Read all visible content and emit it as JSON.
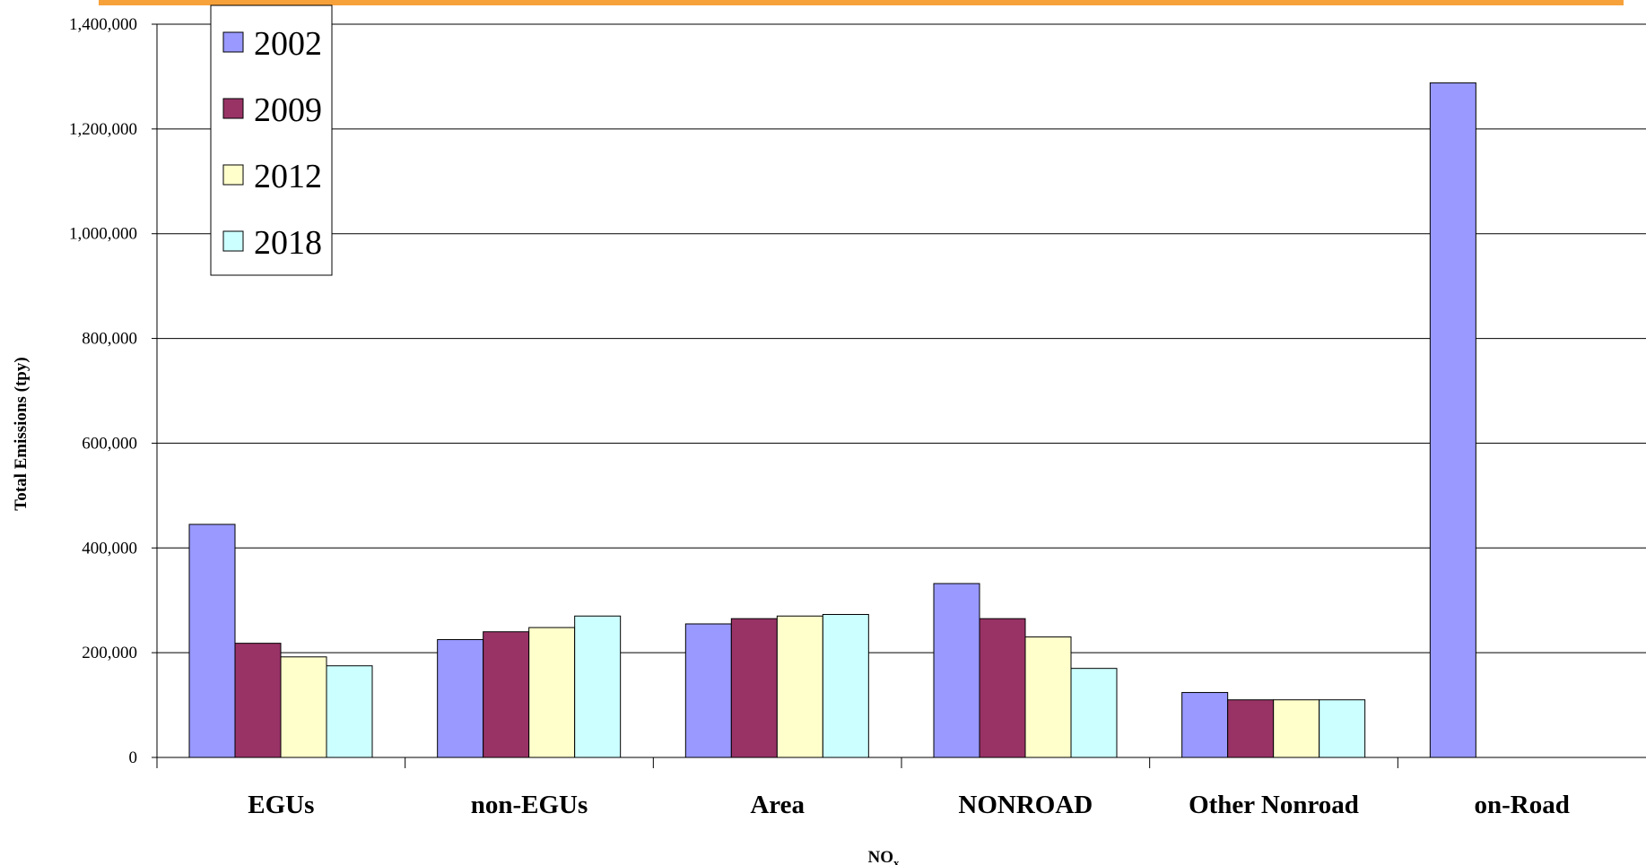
{
  "colors": {
    "accent_bar": "#f7a13a",
    "gridline": "#000000",
    "series": [
      "#9999ff",
      "#993366",
      "#ffffcc",
      "#ccffff"
    ]
  },
  "chart_data": {
    "type": "bar",
    "title": "",
    "xlabel": "NO",
    "xlabel_subscript": "x",
    "ylabel": "Total Emissions (tpy)",
    "ylim": [
      0,
      1400000
    ],
    "yticks": [
      0,
      200000,
      400000,
      600000,
      800000,
      1000000,
      1200000,
      1400000
    ],
    "ytick_labels": [
      "0",
      "200,000",
      "400,000",
      "600,000",
      "800,000",
      "1,000,000",
      "1,200,000",
      "1,400,000"
    ],
    "grid": true,
    "legend_position": "top-left",
    "categories": [
      "EGUs",
      "non-EGUs",
      "Area",
      "NONROAD",
      "Other Nonroad",
      "on-Road"
    ],
    "series": [
      {
        "name": "2002",
        "values": [
          445000,
          225000,
          255000,
          332000,
          124000,
          1288000
        ]
      },
      {
        "name": "2009",
        "values": [
          218000,
          240000,
          265000,
          265000,
          110000,
          null
        ]
      },
      {
        "name": "2012",
        "values": [
          192000,
          248000,
          270000,
          230000,
          110000,
          null
        ]
      },
      {
        "name": "2018",
        "values": [
          175000,
          270000,
          273000,
          170000,
          110000,
          null
        ]
      }
    ]
  }
}
